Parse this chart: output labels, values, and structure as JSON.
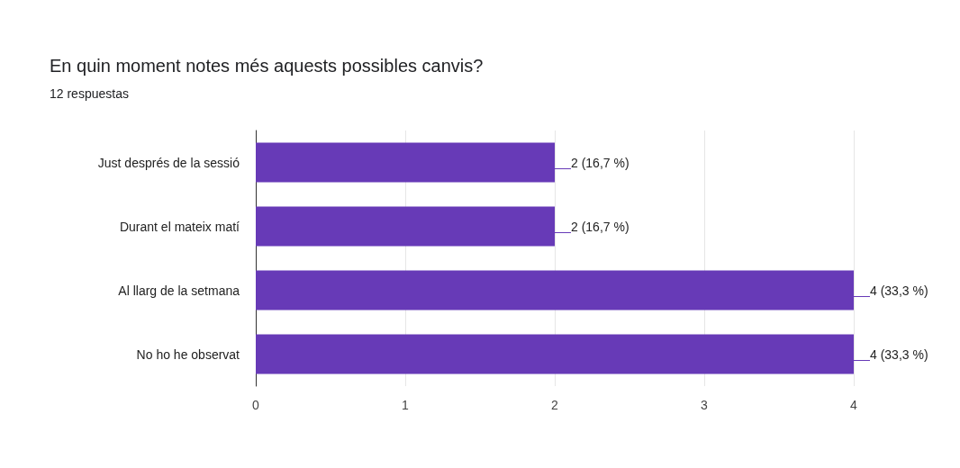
{
  "chart_data": {
    "type": "bar",
    "orientation": "horizontal",
    "title": "En quin moment notes més aquests possibles canvis?",
    "subtitle": "12 respuestas",
    "categories": [
      "Just després de la sessió",
      "Durant el mateix matí",
      "Al llarg de la setmana",
      "No ho he observat"
    ],
    "values": [
      2,
      2,
      4,
      4
    ],
    "color": "#673ab7",
    "value_labels": [
      "2 (16,7 %)",
      "2 (16,7 %)",
      "4 (33,3 %)",
      "4 (33,3 %)"
    ],
    "xlim": [
      0,
      4
    ],
    "xticks": [
      0,
      1,
      2,
      3,
      4
    ],
    "grid": "x"
  }
}
